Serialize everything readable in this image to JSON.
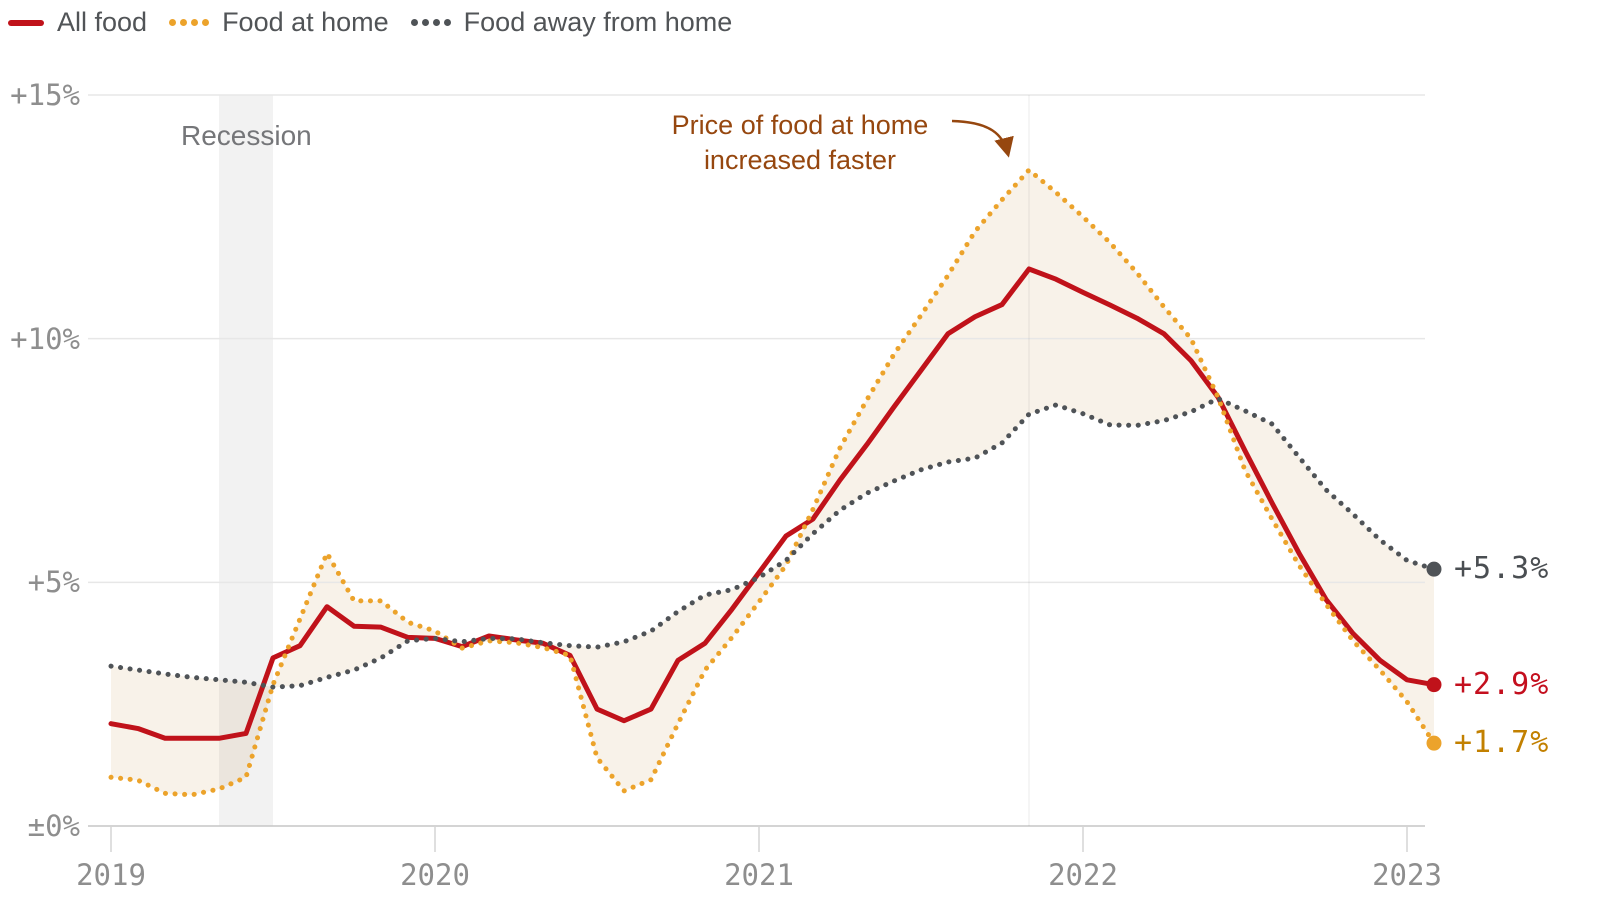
{
  "legend": {
    "items": [
      {
        "label": "All food",
        "color": "#c0121a",
        "style": "solid"
      },
      {
        "label": "Food at home",
        "color": "#eca32b",
        "style": "dotted"
      },
      {
        "label": "Food away from home",
        "color": "#4f5357",
        "style": "dotted"
      }
    ]
  },
  "annotations": {
    "recession_label": "Recession",
    "peak_note_line1": "Price of food at home",
    "peak_note_line2": "increased faster",
    "peak_note_color": "#96470f"
  },
  "chart_data": {
    "type": "line",
    "x_unit": "months, monthly points from Jan 2019 through one month after the 2023 tick",
    "x_tick_months": [
      0,
      12,
      24,
      36,
      48
    ],
    "x_tick_labels": [
      "2019",
      "2020",
      "2021",
      "2022",
      "2023"
    ],
    "y_ticks": [
      {
        "value": 0,
        "label": "±0%"
      },
      {
        "value": 5,
        "label": "+5%"
      },
      {
        "value": 10,
        "label": "+10%"
      },
      {
        "value": 15,
        "label": "+15%"
      }
    ],
    "ylim": [
      0,
      15
    ],
    "grid": "horizontal",
    "recession_band": {
      "start_month": 4,
      "end_month": 6
    },
    "peak_guide_month": 34,
    "band_between": [
      "Food at home",
      "Food away from home"
    ],
    "band_color": "rgba(243,233,218,0.6)",
    "series": [
      {
        "name": "All food",
        "color": "#c0121a",
        "style": "solid",
        "end_label": "+2.9%",
        "end_label_color": "#c40f1e",
        "values": [
          2.1,
          2.0,
          1.8,
          1.8,
          1.8,
          1.9,
          3.45,
          3.7,
          4.5,
          4.1,
          4.08,
          3.87,
          3.85,
          3.68,
          3.9,
          3.82,
          3.75,
          3.5,
          2.4,
          2.16,
          2.4,
          3.4,
          3.75,
          4.45,
          5.2,
          5.95,
          6.3,
          7.1,
          7.83,
          8.6,
          9.35,
          10.1,
          10.45,
          10.7,
          11.43,
          11.22,
          10.95,
          10.69,
          10.42,
          10.1,
          9.55,
          8.8,
          7.7,
          6.63,
          5.6,
          4.65,
          3.95,
          3.4,
          3.0,
          2.9
        ]
      },
      {
        "name": "Food at home",
        "color": "#eca32b",
        "style": "dotted",
        "end_label": "+1.7%",
        "end_label_color": "#c28000",
        "values": [
          1.0,
          0.94,
          0.67,
          0.64,
          0.76,
          1.0,
          2.9,
          4.25,
          5.6,
          4.62,
          4.62,
          4.18,
          4.0,
          3.65,
          3.8,
          3.76,
          3.66,
          3.5,
          1.4,
          0.72,
          0.95,
          2.1,
          3.2,
          3.87,
          4.6,
          5.35,
          6.5,
          7.76,
          8.75,
          9.68,
          10.48,
          11.3,
          12.2,
          12.85,
          13.46,
          13.0,
          12.5,
          11.97,
          11.35,
          10.65,
          10.0,
          8.8,
          7.3,
          6.3,
          5.35,
          4.55,
          3.8,
          3.2,
          2.55,
          1.7
        ]
      },
      {
        "name": "Food away from home",
        "color": "#4f5357",
        "style": "dotted",
        "end_label": "+5.3%",
        "end_label_color": "#4a4e52",
        "values": [
          3.28,
          3.2,
          3.12,
          3.05,
          3.0,
          2.95,
          2.85,
          2.88,
          3.05,
          3.2,
          3.45,
          3.8,
          3.85,
          3.78,
          3.85,
          3.84,
          3.76,
          3.7,
          3.67,
          3.78,
          4.0,
          4.4,
          4.74,
          4.85,
          5.1,
          5.45,
          6.0,
          6.48,
          6.83,
          7.08,
          7.31,
          7.47,
          7.55,
          7.86,
          8.45,
          8.64,
          8.46,
          8.23,
          8.22,
          8.32,
          8.5,
          8.77,
          8.52,
          8.25,
          7.57,
          6.9,
          6.4,
          5.87,
          5.45,
          5.27
        ]
      }
    ]
  }
}
